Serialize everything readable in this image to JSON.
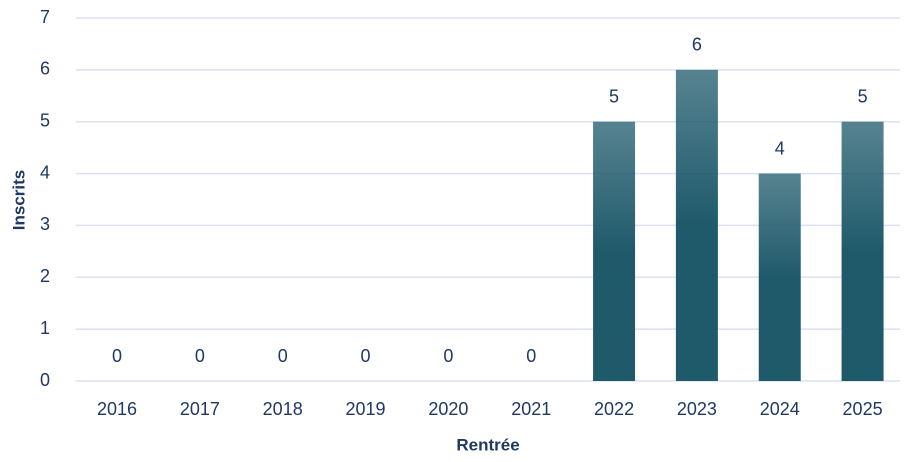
{
  "chart_data": {
    "type": "bar",
    "categories": [
      "2016",
      "2017",
      "2018",
      "2019",
      "2020",
      "2021",
      "2022",
      "2023",
      "2024",
      "2025"
    ],
    "values": [
      0,
      0,
      0,
      0,
      0,
      0,
      5,
      6,
      4,
      5
    ],
    "color": "#1f5a6b",
    "xlabel": "Rentrée",
    "ylabel": "Inscrits",
    "ylim": [
      0,
      7
    ],
    "yticks": [
      0,
      1,
      2,
      3,
      4,
      5,
      6,
      7
    ],
    "grid": true
  }
}
